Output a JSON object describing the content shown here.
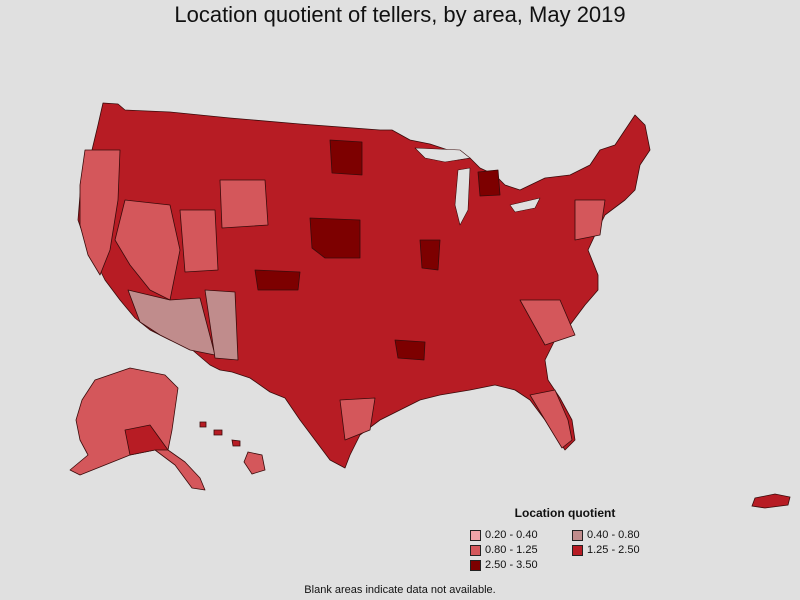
{
  "title": "Location quotient of tellers, by area, May 2019",
  "legend": {
    "title": "Location quotient",
    "items": [
      {
        "label": "0.20 - 0.40",
        "color": "#f0a3a8"
      },
      {
        "label": "0.40 - 0.80",
        "color": "#c08c8c"
      },
      {
        "label": "0.80 - 1.25",
        "color": "#d4575b"
      },
      {
        "label": "1.25 - 2.50",
        "color": "#b71c24"
      },
      {
        "label": "2.50 - 3.50",
        "color": "#7d0000"
      }
    ]
  },
  "footnote": "Blank areas indicate data not available.",
  "colors": {
    "background": "#e0e0e0",
    "border": "#3a0b0b"
  }
}
